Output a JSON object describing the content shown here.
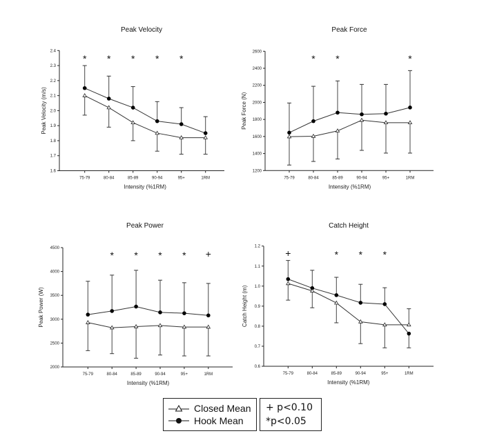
{
  "legend": {
    "series": [
      {
        "name": "Closed Mean",
        "marker": "open-triangle"
      },
      {
        "name": "Hook Mean",
        "marker": "filled-circle"
      }
    ],
    "significance": [
      {
        "symbol": "+",
        "text": "+ p<0.10"
      },
      {
        "symbol": "*",
        "text": "*p<0.05"
      }
    ]
  },
  "chart_data": [
    {
      "type": "line",
      "title": "Peak Velocity",
      "xlabel": "Intensity (%1RM)",
      "ylabel": "Peak Velocity (m/s)",
      "categories": [
        "75-79",
        "80-84",
        "85-89",
        "90-94",
        "95+",
        "1RM"
      ],
      "ylim": [
        1.6,
        2.4
      ],
      "yticks": [
        1.6,
        1.7,
        1.8,
        1.9,
        2.0,
        2.1,
        2.2,
        2.3,
        2.4
      ],
      "ytick_labels": [
        "1.6",
        "1.7",
        "1.8",
        "1.9",
        "2.0",
        "2.1",
        "2.2",
        "2.3",
        "2.4"
      ],
      "grid": false,
      "series": [
        {
          "name": "Hook Mean",
          "marker": "filled-circle",
          "values": [
            2.15,
            2.08,
            2.02,
            1.93,
            1.91,
            1.85
          ],
          "error_upper": [
            2.3,
            2.23,
            2.16,
            2.06,
            2.02,
            1.96
          ]
        },
        {
          "name": "Closed Mean",
          "marker": "open-triangle",
          "values": [
            2.1,
            2.02,
            1.92,
            1.85,
            1.82,
            1.82
          ],
          "error_lower": [
            1.97,
            1.89,
            1.8,
            1.73,
            1.71,
            1.71
          ]
        }
      ],
      "significance": [
        "*",
        "*",
        "*",
        "*",
        "*",
        ""
      ]
    },
    {
      "type": "line",
      "title": "Peak Force",
      "xlabel": "Intensity (%1RM)",
      "ylabel": "Peak Force (N)",
      "categories": [
        "75-79",
        "80-84",
        "85-89",
        "90-94",
        "95+",
        "1RM"
      ],
      "ylim": [
        1200,
        2600
      ],
      "yticks": [
        1200,
        1400,
        1600,
        1800,
        2000,
        2200,
        2400,
        2600
      ],
      "ytick_labels": [
        "1200",
        "1400",
        "1600",
        "1800",
        "2000",
        "2200",
        "2400",
        "2600"
      ],
      "grid": false,
      "series": [
        {
          "name": "Hook Mean",
          "marker": "filled-circle",
          "values": [
            1645,
            1780,
            1880,
            1860,
            1868,
            1940
          ],
          "error_upper": [
            1993,
            2189,
            2252,
            2211,
            2211,
            2373
          ]
        },
        {
          "name": "Closed Mean",
          "marker": "open-triangle",
          "values": [
            1598,
            1603,
            1666,
            1791,
            1762,
            1762
          ],
          "error_lower": [
            1265,
            1307,
            1336,
            1437,
            1405,
            1405
          ]
        }
      ],
      "significance": [
        "",
        "*",
        "*",
        "",
        "",
        "*"
      ]
    },
    {
      "type": "line",
      "title": "Peak Power",
      "xlabel": "Intensity (%1RM)",
      "ylabel": "Peak Power (W)",
      "categories": [
        "75-79",
        "80-84",
        "85-89",
        "90-94",
        "95+",
        "1RM"
      ],
      "ylim": [
        2000,
        4500
      ],
      "yticks": [
        2000,
        2500,
        3000,
        3500,
        4000,
        4500
      ],
      "ytick_labels": [
        "2000",
        "2500",
        "3000",
        "3500",
        "4000",
        "4500"
      ],
      "grid": false,
      "series": [
        {
          "name": "Hook Mean",
          "marker": "filled-circle",
          "values": [
            3097,
            3172,
            3265,
            3144,
            3125,
            3080
          ],
          "error_upper": [
            3795,
            3924,
            4025,
            3818,
            3765,
            3750
          ]
        },
        {
          "name": "Closed Mean",
          "marker": "open-triangle",
          "values": [
            2930,
            2822,
            2845,
            2868,
            2836,
            2836
          ],
          "error_lower": [
            2342,
            2279,
            2183,
            2250,
            2231,
            2231
          ]
        }
      ],
      "significance": [
        "",
        "*",
        "*",
        "*",
        "*",
        "+"
      ]
    },
    {
      "type": "line",
      "title": "Catch Height",
      "xlabel": "Intensity (%1RM)",
      "ylabel": "Catch Height (m)",
      "categories": [
        "75-79",
        "80-84",
        "85-89",
        "90-94",
        "95+",
        "1RM"
      ],
      "ylim": [
        0.6,
        1.2
      ],
      "yticks": [
        0.6,
        0.7,
        0.8,
        0.9,
        1.0,
        1.1,
        1.2
      ],
      "ytick_labels": [
        "0.6",
        "0.7",
        "0.8",
        "0.9",
        "1.0",
        "1.1",
        "1.2"
      ],
      "grid": false,
      "series": [
        {
          "name": "Hook Mean",
          "marker": "filled-circle",
          "values": [
            1.035,
            0.99,
            0.955,
            0.917,
            0.91,
            0.763
          ],
          "error_upper": [
            1.128,
            1.079,
            1.044,
            1.009,
            0.992,
            null
          ],
          "error_lower": [
            null,
            null,
            null,
            null,
            null,
            0.692
          ]
        },
        {
          "name": "Closed Mean",
          "marker": "open-triangle",
          "values": [
            1.013,
            0.976,
            0.916,
            0.822,
            0.807,
            0.807
          ],
          "error_lower": [
            0.93,
            0.892,
            0.817,
            0.713,
            0.692,
            null
          ],
          "error_upper": [
            null,
            null,
            null,
            null,
            null,
            0.887
          ]
        }
      ],
      "significance": [
        "+",
        "",
        "*",
        "*",
        "*",
        ""
      ]
    }
  ]
}
